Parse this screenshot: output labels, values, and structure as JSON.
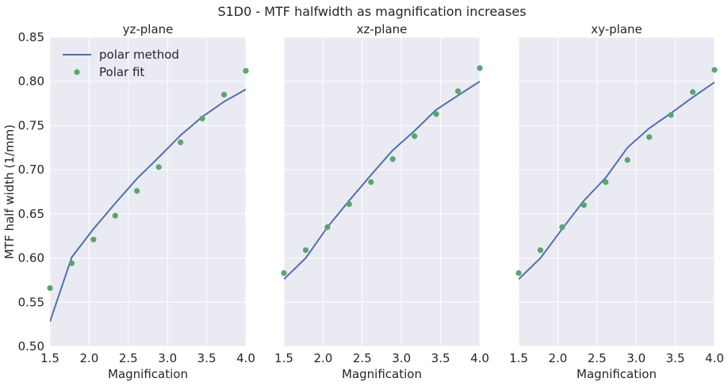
{
  "figure": {
    "suptitle": "S1D0 - MTF halfwidth as magnification increases"
  },
  "legend": {
    "line_label": "polar method",
    "marker_label": "Polar fit",
    "placement": "upper left of first panel"
  },
  "colors": {
    "axes_background": "#eaeaf2",
    "grid": "#ffffff",
    "line": "#4c72b0",
    "marker": "#55a868",
    "text": "#262626"
  },
  "chart_data": [
    {
      "type": "line",
      "title": "yz-plane",
      "xlabel": "Magnification",
      "ylabel": "MTF half width (1/mm)",
      "xlim": [
        1.5,
        4.0
      ],
      "ylim": [
        0.5,
        0.85
      ],
      "xticks": [
        "1.5",
        "2.0",
        "2.5",
        "3.0",
        "3.5",
        "4.0"
      ],
      "yticks": [
        "0.50",
        "0.55",
        "0.60",
        "0.65",
        "0.70",
        "0.75",
        "0.80",
        "0.85"
      ],
      "grid": true,
      "series": [
        {
          "name": "polar method",
          "style": "line",
          "x": [
            1.5,
            1.778,
            2.056,
            2.333,
            2.611,
            2.889,
            3.167,
            3.444,
            3.722,
            4.0
          ],
          "y": [
            0.528,
            0.601,
            0.633,
            0.662,
            0.69,
            0.714,
            0.739,
            0.76,
            0.777,
            0.791
          ]
        },
        {
          "name": "Polar fit",
          "style": "markers",
          "x": [
            1.5,
            1.778,
            2.056,
            2.333,
            2.611,
            2.889,
            3.167,
            3.444,
            3.722,
            4.0
          ],
          "y": [
            0.566,
            0.594,
            0.621,
            0.648,
            0.676,
            0.703,
            0.731,
            0.758,
            0.785,
            0.812
          ]
        }
      ]
    },
    {
      "type": "line",
      "title": "xz-plane",
      "xlabel": "Magnification",
      "ylabel": "",
      "xlim": [
        1.5,
        4.0
      ],
      "ylim": [
        0.5,
        0.85
      ],
      "xticks": [
        "1.5",
        "2.0",
        "2.5",
        "3.0",
        "3.5",
        "4.0"
      ],
      "yticks": [],
      "grid": true,
      "series": [
        {
          "name": "polar method",
          "style": "line",
          "x": [
            1.5,
            1.778,
            2.056,
            2.333,
            2.611,
            2.889,
            3.167,
            3.444,
            3.722,
            4.0
          ],
          "y": [
            0.576,
            0.6,
            0.635,
            0.665,
            0.694,
            0.722,
            0.744,
            0.768,
            0.784,
            0.8
          ]
        },
        {
          "name": "Polar fit",
          "style": "markers",
          "x": [
            1.5,
            1.778,
            2.056,
            2.333,
            2.611,
            2.889,
            3.167,
            3.444,
            3.722,
            4.0
          ],
          "y": [
            0.583,
            0.609,
            0.635,
            0.661,
            0.686,
            0.712,
            0.738,
            0.763,
            0.789,
            0.815
          ]
        }
      ]
    },
    {
      "type": "line",
      "title": "xy-plane",
      "xlabel": "Magnification",
      "ylabel": "",
      "xlim": [
        1.5,
        4.0
      ],
      "ylim": [
        0.5,
        0.85
      ],
      "xticks": [
        "1.5",
        "2.0",
        "2.5",
        "3.0",
        "3.5",
        "4.0"
      ],
      "yticks": [],
      "grid": true,
      "series": [
        {
          "name": "polar method",
          "style": "line",
          "x": [
            1.5,
            1.778,
            2.056,
            2.333,
            2.611,
            2.889,
            3.167,
            3.444,
            3.722,
            4.0
          ],
          "y": [
            0.576,
            0.6,
            0.633,
            0.665,
            0.691,
            0.725,
            0.747,
            0.764,
            0.782,
            0.799
          ]
        },
        {
          "name": "Polar fit",
          "style": "markers",
          "x": [
            1.5,
            1.778,
            2.056,
            2.333,
            2.611,
            2.889,
            3.167,
            3.444,
            3.722,
            4.0
          ],
          "y": [
            0.583,
            0.609,
            0.635,
            0.66,
            0.686,
            0.711,
            0.737,
            0.762,
            0.788,
            0.813
          ]
        }
      ]
    }
  ]
}
